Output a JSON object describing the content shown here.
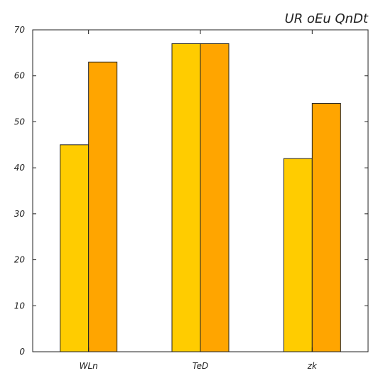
{
  "chart_data": {
    "type": "bar",
    "title": "UR oEu  QnDt",
    "xlabel": "",
    "ylabel": "",
    "categories": [
      "WLn",
      "TeD",
      "zk"
    ],
    "series": [
      {
        "values": [
          45,
          67,
          42
        ],
        "color": "#FFCC00"
      },
      {
        "values": [
          63,
          67,
          54
        ],
        "color": "#FFA500"
      }
    ],
    "ylim": [
      0,
      70
    ],
    "yticks": [
      0,
      10,
      20,
      30,
      40,
      50,
      60,
      70
    ],
    "grid": false,
    "legend": "none"
  }
}
